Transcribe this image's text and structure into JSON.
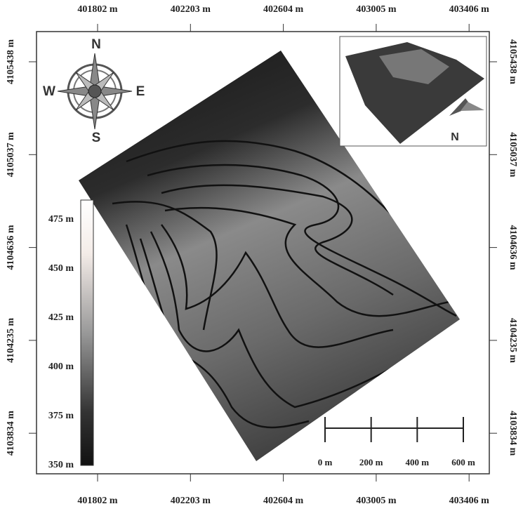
{
  "map": {
    "x_labels": [
      "401802 m",
      "402203 m",
      "402604 m",
      "403005 m",
      "403406 m"
    ],
    "y_labels": [
      "4105438 m",
      "4105037 m",
      "4104636 m",
      "4104235 m",
      "4103834 m"
    ],
    "compass": {
      "north": "N",
      "south": "S",
      "west": "W",
      "east": "E"
    },
    "inset": {
      "north": "N"
    },
    "legend": {
      "labels": [
        "475 m",
        "450 m",
        "425 m",
        "400 m",
        "375 m",
        "350 m"
      ]
    },
    "scale_bar": {
      "labels": [
        "0 m",
        "200 m",
        "400 m",
        "600 m"
      ]
    }
  }
}
